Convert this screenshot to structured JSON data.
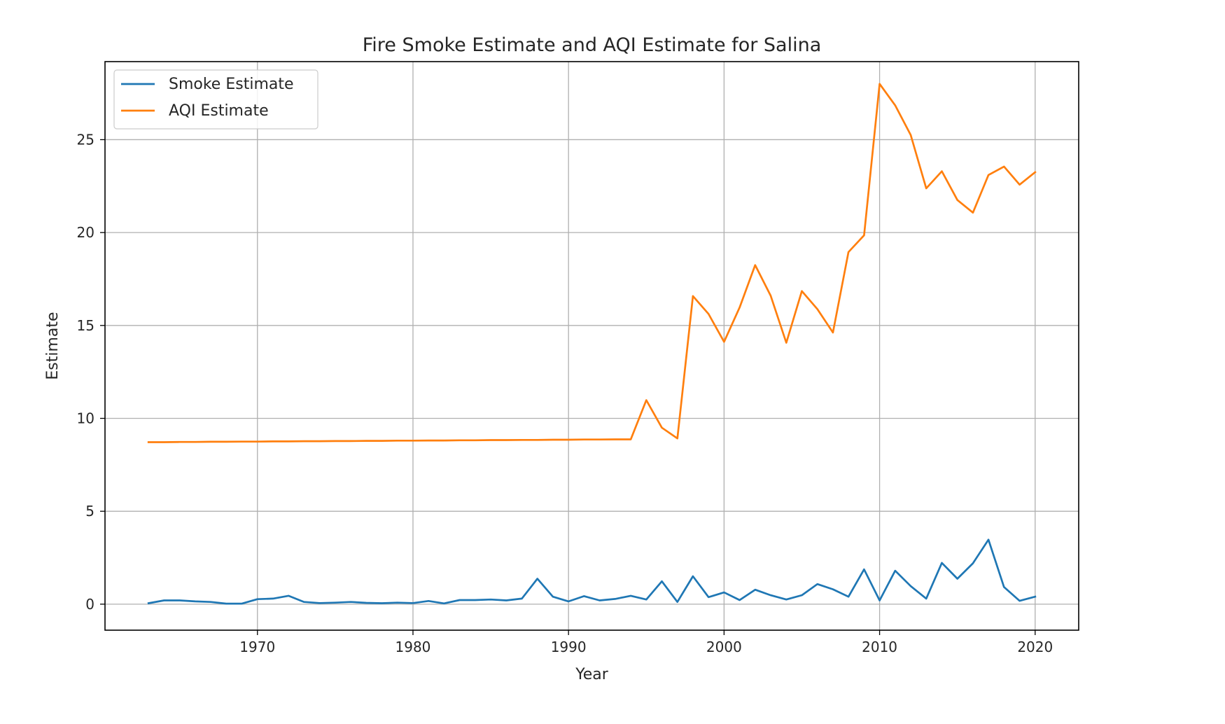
{
  "chart_data": {
    "type": "line",
    "title": "Fire Smoke Estimate and AQI Estimate for Salina",
    "xlabel": "Year",
    "ylabel": "Estimate",
    "xlim": [
      1960.2,
      2022.8
    ],
    "ylim": [
      -1.4,
      29.2
    ],
    "xticks": [
      1970,
      1980,
      1990,
      2000,
      2010,
      2020
    ],
    "yticks": [
      0,
      5,
      10,
      15,
      20,
      25
    ],
    "grid": true,
    "legend_position": "top-left",
    "x": [
      1963,
      1964,
      1965,
      1966,
      1967,
      1968,
      1969,
      1970,
      1971,
      1972,
      1973,
      1974,
      1975,
      1976,
      1977,
      1978,
      1979,
      1980,
      1981,
      1982,
      1983,
      1984,
      1985,
      1986,
      1987,
      1988,
      1989,
      1990,
      1991,
      1992,
      1993,
      1994,
      1995,
      1996,
      1997,
      1998,
      1999,
      2000,
      2001,
      2002,
      2003,
      2004,
      2005,
      2006,
      2007,
      2008,
      2009,
      2010,
      2011,
      2012,
      2013,
      2014,
      2015,
      2016,
      2017,
      2018,
      2019,
      2020
    ],
    "series": [
      {
        "name": "Smoke Estimate",
        "color": "#1f77b4",
        "values": [
          0.05,
          0.2,
          0.2,
          0.15,
          0.12,
          0.03,
          0.03,
          0.27,
          0.3,
          0.45,
          0.12,
          0.06,
          0.08,
          0.12,
          0.07,
          0.05,
          0.08,
          0.06,
          0.17,
          0.04,
          0.22,
          0.22,
          0.25,
          0.2,
          0.3,
          1.37,
          0.4,
          0.15,
          0.43,
          0.2,
          0.28,
          0.45,
          0.25,
          1.23,
          0.12,
          1.5,
          0.38,
          0.63,
          0.22,
          0.78,
          0.48,
          0.25,
          0.48,
          1.08,
          0.8,
          0.4,
          1.87,
          0.2,
          1.8,
          0.97,
          0.3,
          2.22,
          1.37,
          2.2,
          3.47,
          0.92,
          0.18,
          0.4
        ]
      },
      {
        "name": "AQI Estimate",
        "color": "#ff7f0e",
        "values": [
          8.72,
          8.72,
          8.73,
          8.73,
          8.74,
          8.74,
          8.75,
          8.75,
          8.76,
          8.76,
          8.77,
          8.77,
          8.78,
          8.78,
          8.79,
          8.79,
          8.8,
          8.8,
          8.81,
          8.81,
          8.82,
          8.82,
          8.83,
          8.83,
          8.84,
          8.84,
          8.85,
          8.85,
          8.86,
          8.86,
          8.87,
          8.87,
          10.98,
          9.5,
          8.92,
          16.58,
          15.62,
          14.12,
          15.97,
          18.25,
          16.6,
          14.07,
          16.85,
          15.88,
          14.62,
          18.95,
          19.85,
          28.0,
          26.85,
          25.25,
          22.38,
          23.3,
          21.75,
          21.07,
          23.1,
          23.55,
          22.58,
          23.25
        ]
      }
    ]
  }
}
